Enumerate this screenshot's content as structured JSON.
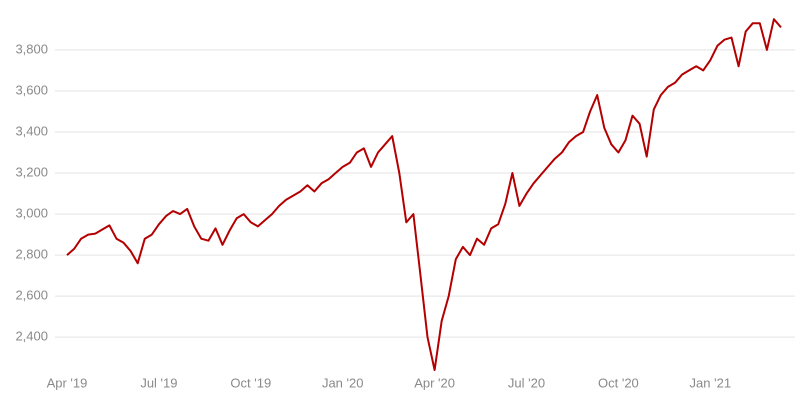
{
  "chart_data": {
    "type": "line",
    "categories": [
      "Apr '19",
      null,
      null,
      null,
      null,
      null,
      null,
      null,
      null,
      null,
      null,
      null,
      null,
      "Jul '19",
      null,
      null,
      null,
      null,
      null,
      null,
      null,
      null,
      null,
      null,
      null,
      null,
      "Oct '19",
      null,
      null,
      null,
      null,
      null,
      null,
      null,
      null,
      null,
      null,
      null,
      null,
      "Jan '20",
      null,
      null,
      null,
      null,
      null,
      null,
      null,
      null,
      null,
      null,
      null,
      null,
      "Apr '20",
      null,
      null,
      null,
      null,
      null,
      null,
      null,
      null,
      null,
      null,
      null,
      null,
      "Jul '20",
      null,
      null,
      null,
      null,
      null,
      null,
      null,
      null,
      null,
      null,
      null,
      null,
      "Oct '20",
      null,
      null,
      null,
      null,
      null,
      null,
      null,
      null,
      null,
      null,
      null,
      null,
      "Jan '21",
      null,
      null,
      null,
      null,
      null,
      null,
      null,
      null,
      null,
      null
    ],
    "values": [
      2800,
      2830,
      2880,
      2900,
      2905,
      2925,
      2945,
      2880,
      2860,
      2820,
      2760,
      2880,
      2900,
      2950,
      2990,
      3015,
      3000,
      3025,
      2940,
      2880,
      2870,
      2930,
      2850,
      2920,
      2980,
      3000,
      2960,
      2940,
      2970,
      3000,
      3040,
      3070,
      3090,
      3110,
      3140,
      3110,
      3150,
      3170,
      3200,
      3230,
      3250,
      3300,
      3320,
      3230,
      3300,
      3340,
      3380,
      3200,
      2960,
      3000,
      2700,
      2400,
      2240,
      2480,
      2600,
      2780,
      2840,
      2800,
      2880,
      2850,
      2930,
      2950,
      3050,
      3200,
      3040,
      3100,
      3150,
      3190,
      3230,
      3270,
      3300,
      3350,
      3380,
      3400,
      3500,
      3580,
      3420,
      3340,
      3300,
      3360,
      3480,
      3440,
      3280,
      3510,
      3580,
      3620,
      3640,
      3680,
      3700,
      3720,
      3700,
      3750,
      3820,
      3850,
      3860,
      3720,
      3890,
      3930,
      3930,
      3800,
      3950,
      3910
    ],
    "color": "#b40000",
    "ylim": [
      2240,
      3980
    ],
    "yticks": [
      {
        "value": 2400,
        "label": "2,400"
      },
      {
        "value": 2600,
        "label": "2,600"
      },
      {
        "value": 2800,
        "label": "2,800"
      },
      {
        "value": 3000,
        "label": "3,000"
      },
      {
        "value": 3200,
        "label": "3,200"
      },
      {
        "value": 3400,
        "label": "3,400"
      },
      {
        "value": 3600,
        "label": "3,600"
      },
      {
        "value": 3800,
        "label": "3,800"
      }
    ],
    "grid": true
  }
}
